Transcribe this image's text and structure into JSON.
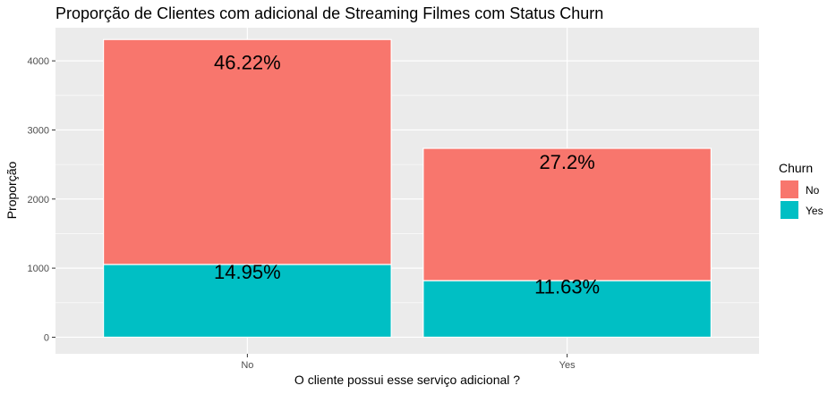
{
  "chart_data": {
    "type": "bar",
    "stacked": true,
    "title": "Proporção de Clientes com adicional de Streaming Filmes com Status Churn",
    "xlabel": "O cliente possui esse serviço adicional ?",
    "ylabel": "Proporção",
    "categories": [
      "No",
      "Yes"
    ],
    "ylim": [
      -240,
      4480
    ],
    "yticks": [
      0,
      1000,
      2000,
      3000,
      4000
    ],
    "ytick_labels": [
      "0",
      "1000",
      "2000",
      "3000",
      "4000"
    ],
    "grid": true,
    "legend": {
      "title": "Churn",
      "position": "right",
      "entries": [
        {
          "label": "No",
          "color": "#F8766D"
        },
        {
          "label": "Yes",
          "color": "#00BFC4"
        }
      ]
    },
    "series": [
      {
        "name": "Yes",
        "color": "#00BFC4",
        "values": [
          1053,
          819
        ],
        "labels": [
          "14.95%",
          "11.63%"
        ]
      },
      {
        "name": "No",
        "color": "#F8766D",
        "values": [
          3256,
          1915
        ],
        "labels": [
          "46.22%",
          "27.2%"
        ]
      }
    ]
  }
}
